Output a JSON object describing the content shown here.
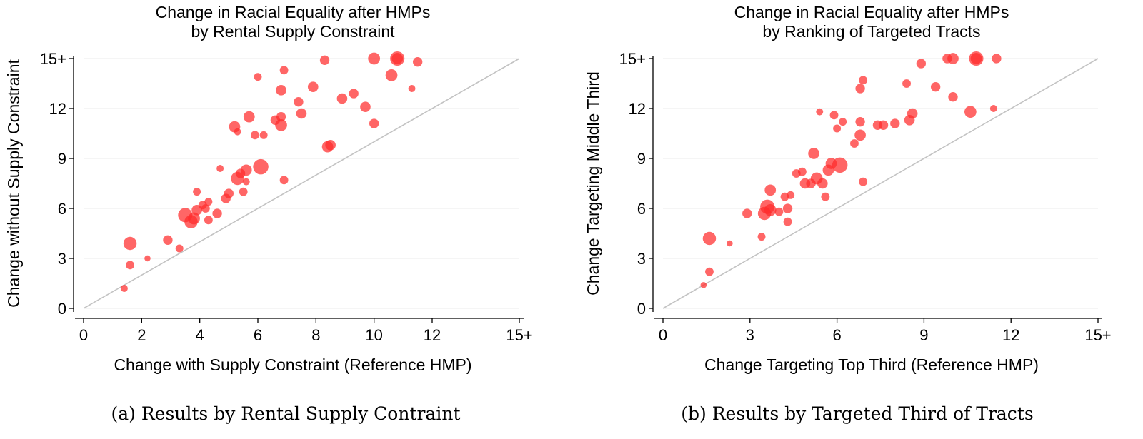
{
  "chart_data": [
    {
      "type": "scatter",
      "title": [
        "Change in Racial Equality after HMPs",
        "by Rental Supply Constraint"
      ],
      "xlabel": "Change with Supply Constraint (Reference HMP)",
      "ylabel": "Change without Supply Constraint",
      "xlim": [
        0,
        15
      ],
      "ylim": [
        0,
        15
      ],
      "xticks": [
        {
          "v": 0,
          "label": "0"
        },
        {
          "v": 2,
          "label": "2"
        },
        {
          "v": 4,
          "label": "4"
        },
        {
          "v": 6,
          "label": "6"
        },
        {
          "v": 8,
          "label": "8"
        },
        {
          "v": 10,
          "label": "10"
        },
        {
          "v": 12,
          "label": "12"
        },
        {
          "v": 15,
          "label": "15+"
        }
      ],
      "yticks": [
        {
          "v": 0,
          "label": "0"
        },
        {
          "v": 3,
          "label": "3"
        },
        {
          "v": 6,
          "label": "6"
        },
        {
          "v": 9,
          "label": "9"
        },
        {
          "v": 12,
          "label": "12"
        },
        {
          "v": 15,
          "label": "15+"
        }
      ],
      "grid": "horizontal",
      "reference_line": "45-degree",
      "marker_color": "#ff2b2b",
      "points": [
        {
          "x": 1.4,
          "y": 1.2,
          "w": 1
        },
        {
          "x": 1.6,
          "y": 2.6,
          "w": 2
        },
        {
          "x": 1.6,
          "y": 3.9,
          "w": 8
        },
        {
          "x": 2.2,
          "y": 3.0,
          "w": 0.5
        },
        {
          "x": 2.9,
          "y": 4.1,
          "w": 3
        },
        {
          "x": 3.3,
          "y": 3.6,
          "w": 1.5
        },
        {
          "x": 3.5,
          "y": 5.6,
          "w": 10
        },
        {
          "x": 3.7,
          "y": 5.2,
          "w": 8
        },
        {
          "x": 3.8,
          "y": 5.4,
          "w": 6
        },
        {
          "x": 3.9,
          "y": 5.9,
          "w": 4
        },
        {
          "x": 3.9,
          "y": 7.0,
          "w": 1.5
        },
        {
          "x": 4.1,
          "y": 6.2,
          "w": 2
        },
        {
          "x": 4.2,
          "y": 6.0,
          "w": 2
        },
        {
          "x": 4.3,
          "y": 5.3,
          "w": 2
        },
        {
          "x": 4.3,
          "y": 6.4,
          "w": 1.5
        },
        {
          "x": 4.6,
          "y": 5.7,
          "w": 3
        },
        {
          "x": 4.7,
          "y": 8.4,
          "w": 1
        },
        {
          "x": 4.9,
          "y": 6.6,
          "w": 3
        },
        {
          "x": 5.0,
          "y": 6.9,
          "w": 3
        },
        {
          "x": 5.3,
          "y": 7.8,
          "w": 8
        },
        {
          "x": 5.4,
          "y": 8.1,
          "w": 3
        },
        {
          "x": 5.5,
          "y": 7.0,
          "w": 2
        },
        {
          "x": 5.6,
          "y": 8.3,
          "w": 5
        },
        {
          "x": 5.6,
          "y": 7.6,
          "w": 1
        },
        {
          "x": 5.2,
          "y": 10.9,
          "w": 5
        },
        {
          "x": 5.3,
          "y": 10.6,
          "w": 1
        },
        {
          "x": 5.7,
          "y": 11.5,
          "w": 5
        },
        {
          "x": 5.9,
          "y": 10.4,
          "w": 2
        },
        {
          "x": 6.0,
          "y": 13.9,
          "w": 1.5
        },
        {
          "x": 6.2,
          "y": 10.4,
          "w": 1.5
        },
        {
          "x": 6.1,
          "y": 8.5,
          "w": 12
        },
        {
          "x": 6.6,
          "y": 11.3,
          "w": 3
        },
        {
          "x": 6.8,
          "y": 11.5,
          "w": 3
        },
        {
          "x": 6.8,
          "y": 11.0,
          "w": 6
        },
        {
          "x": 6.8,
          "y": 13.1,
          "w": 4
        },
        {
          "x": 6.9,
          "y": 14.3,
          "w": 2
        },
        {
          "x": 6.9,
          "y": 7.7,
          "w": 2
        },
        {
          "x": 7.4,
          "y": 12.4,
          "w": 3
        },
        {
          "x": 7.5,
          "y": 11.7,
          "w": 4
        },
        {
          "x": 7.9,
          "y": 13.3,
          "w": 4
        },
        {
          "x": 8.3,
          "y": 14.9,
          "w": 3
        },
        {
          "x": 8.4,
          "y": 9.7,
          "w": 5
        },
        {
          "x": 8.5,
          "y": 9.8,
          "w": 4
        },
        {
          "x": 8.9,
          "y": 12.6,
          "w": 4
        },
        {
          "x": 9.3,
          "y": 12.9,
          "w": 3
        },
        {
          "x": 9.7,
          "y": 12.1,
          "w": 4
        },
        {
          "x": 10.0,
          "y": 11.1,
          "w": 3
        },
        {
          "x": 10.0,
          "y": 15.0,
          "w": 6
        },
        {
          "x": 10.6,
          "y": 14.0,
          "w": 6
        },
        {
          "x": 10.8,
          "y": 15.0,
          "w": 10
        },
        {
          "x": 10.8,
          "y": 15.0,
          "w": 5
        },
        {
          "x": 11.3,
          "y": 13.2,
          "w": 1
        },
        {
          "x": 11.5,
          "y": 14.8,
          "w": 3
        }
      ]
    },
    {
      "type": "scatter",
      "title": [
        "Change in Racial Equality after HMPs",
        "by Ranking of Targeted Tracts"
      ],
      "xlabel": "Change Targeting Top Third (Reference HMP)",
      "ylabel": "Change Targeting Middle Third",
      "xlim": [
        0,
        15
      ],
      "ylim": [
        0,
        15
      ],
      "xticks": [
        {
          "v": 0,
          "label": "0"
        },
        {
          "v": 3,
          "label": "3"
        },
        {
          "v": 6,
          "label": "6"
        },
        {
          "v": 9,
          "label": "9"
        },
        {
          "v": 12,
          "label": "12"
        },
        {
          "v": 15,
          "label": "15+"
        }
      ],
      "yticks": [
        {
          "v": 0,
          "label": "0"
        },
        {
          "v": 3,
          "label": "3"
        },
        {
          "v": 6,
          "label": "6"
        },
        {
          "v": 9,
          "label": "9"
        },
        {
          "v": 12,
          "label": "12"
        },
        {
          "v": 15,
          "label": "15+"
        }
      ],
      "grid": "horizontal",
      "reference_line": "45-degree",
      "marker_color": "#ff2b2b",
      "points": [
        {
          "x": 1.4,
          "y": 1.4,
          "w": 0.5
        },
        {
          "x": 1.6,
          "y": 2.2,
          "w": 2
        },
        {
          "x": 1.6,
          "y": 4.2,
          "w": 8
        },
        {
          "x": 2.3,
          "y": 3.9,
          "w": 0.5
        },
        {
          "x": 2.9,
          "y": 5.7,
          "w": 3
        },
        {
          "x": 3.4,
          "y": 4.3,
          "w": 1.5
        },
        {
          "x": 3.5,
          "y": 5.7,
          "w": 8
        },
        {
          "x": 3.6,
          "y": 6.1,
          "w": 10
        },
        {
          "x": 3.7,
          "y": 5.9,
          "w": 6
        },
        {
          "x": 3.7,
          "y": 7.1,
          "w": 5
        },
        {
          "x": 4.0,
          "y": 5.8,
          "w": 2
        },
        {
          "x": 4.2,
          "y": 6.7,
          "w": 2
        },
        {
          "x": 4.3,
          "y": 6.0,
          "w": 3
        },
        {
          "x": 4.3,
          "y": 5.2,
          "w": 2
        },
        {
          "x": 4.4,
          "y": 6.8,
          "w": 1.5
        },
        {
          "x": 4.6,
          "y": 8.1,
          "w": 2
        },
        {
          "x": 4.8,
          "y": 8.2,
          "w": 2
        },
        {
          "x": 4.9,
          "y": 7.5,
          "w": 4
        },
        {
          "x": 5.1,
          "y": 7.5,
          "w": 3
        },
        {
          "x": 5.2,
          "y": 9.3,
          "w": 5
        },
        {
          "x": 5.3,
          "y": 7.8,
          "w": 6
        },
        {
          "x": 5.5,
          "y": 7.5,
          "w": 4
        },
        {
          "x": 5.6,
          "y": 6.7,
          "w": 2
        },
        {
          "x": 5.7,
          "y": 8.3,
          "w": 5
        },
        {
          "x": 5.8,
          "y": 8.7,
          "w": 5
        },
        {
          "x": 5.4,
          "y": 11.8,
          "w": 1
        },
        {
          "x": 5.9,
          "y": 11.6,
          "w": 2
        },
        {
          "x": 6.0,
          "y": 10.8,
          "w": 1.5
        },
        {
          "x": 6.2,
          "y": 11.2,
          "w": 1.5
        },
        {
          "x": 6.1,
          "y": 8.6,
          "w": 12
        },
        {
          "x": 6.6,
          "y": 9.9,
          "w": 2
        },
        {
          "x": 6.8,
          "y": 10.4,
          "w": 5
        },
        {
          "x": 6.8,
          "y": 11.2,
          "w": 3
        },
        {
          "x": 6.8,
          "y": 13.2,
          "w": 3
        },
        {
          "x": 6.9,
          "y": 13.7,
          "w": 2
        },
        {
          "x": 6.9,
          "y": 7.6,
          "w": 2
        },
        {
          "x": 7.4,
          "y": 11.0,
          "w": 3
        },
        {
          "x": 7.6,
          "y": 11.0,
          "w": 3
        },
        {
          "x": 8.0,
          "y": 11.1,
          "w": 3
        },
        {
          "x": 8.4,
          "y": 13.5,
          "w": 2
        },
        {
          "x": 8.5,
          "y": 11.3,
          "w": 4
        },
        {
          "x": 8.6,
          "y": 11.7,
          "w": 4
        },
        {
          "x": 8.9,
          "y": 14.7,
          "w": 3
        },
        {
          "x": 9.4,
          "y": 13.3,
          "w": 3
        },
        {
          "x": 9.8,
          "y": 15.0,
          "w": 3
        },
        {
          "x": 10.0,
          "y": 15.0,
          "w": 5
        },
        {
          "x": 10.0,
          "y": 12.7,
          "w": 3
        },
        {
          "x": 10.6,
          "y": 11.8,
          "w": 6
        },
        {
          "x": 10.8,
          "y": 15.0,
          "w": 10
        },
        {
          "x": 10.8,
          "y": 15.0,
          "w": 5
        },
        {
          "x": 11.4,
          "y": 12.0,
          "w": 1
        },
        {
          "x": 11.5,
          "y": 15.0,
          "w": 3
        }
      ]
    }
  ],
  "captions": [
    "(a) Results by Rental Supply Contraint",
    "(b) Results by Targeted Third of Tracts"
  ]
}
